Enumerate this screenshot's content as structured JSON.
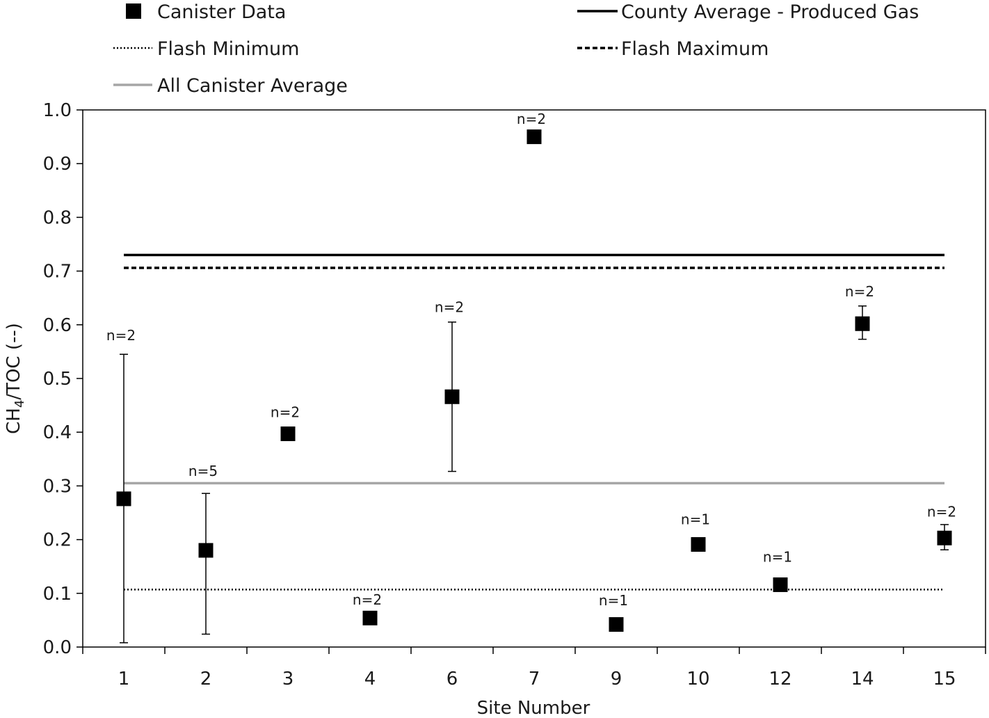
{
  "chart_data": {
    "type": "scatter",
    "title": "",
    "xlabel": "Site Number",
    "ylabel": {
      "main": "CH",
      "subscript": "4",
      "rest": "/TOC (--)"
    },
    "ylim": [
      0,
      1.0
    ],
    "yticks": [
      "0.0",
      "0.1",
      "0.2",
      "0.3",
      "0.4",
      "0.5",
      "0.6",
      "0.7",
      "0.8",
      "0.9",
      "1.0"
    ],
    "ytick_values": [
      0,
      0.1,
      0.2,
      0.3,
      0.4,
      0.5,
      0.6,
      0.7,
      0.8,
      0.9,
      1.0
    ],
    "categories": [
      "1",
      "2",
      "3",
      "4",
      "6",
      "7",
      "9",
      "10",
      "12",
      "14",
      "15"
    ],
    "grid": false,
    "legend_position": "top",
    "series": [
      {
        "name": "Canister Data",
        "marker": "square",
        "color": "#000000",
        "values": [
          0.276,
          0.18,
          0.397,
          0.054,
          0.466,
          0.95,
          0.042,
          0.191,
          0.116,
          0.602,
          0.203
        ],
        "err_low": [
          0.008,
          0.024,
          null,
          null,
          0.327,
          null,
          null,
          null,
          null,
          0.573,
          0.181
        ],
        "err_high": [
          0.545,
          0.286,
          null,
          null,
          0.605,
          null,
          null,
          null,
          null,
          0.635,
          0.228
        ],
        "n_labels": [
          "n=2",
          "n=5",
          "n=2",
          "n=2",
          "n=2",
          "n=2",
          "n=1",
          "n=1",
          "n=1",
          "n=2",
          "n=2"
        ],
        "n_label_values": [
          0.58,
          0.328,
          0.437,
          0.088,
          0.633,
          0.983,
          0.087,
          0.238,
          0.168,
          0.662,
          0.252
        ]
      }
    ],
    "reference_lines": [
      {
        "name": "County Average - Produced Gas",
        "value": 0.73,
        "style": "solid",
        "color": "#000000"
      },
      {
        "name": "Flash Maximum",
        "value": 0.706,
        "style": "dashed",
        "color": "#000000"
      },
      {
        "name": "Flash Minimum",
        "value": 0.107,
        "style": "dotted",
        "color": "#000000"
      },
      {
        "name": "All Canister Average",
        "value": 0.305,
        "style": "solid",
        "color": "#a6a6a6"
      }
    ],
    "legend": [
      {
        "label": "Canister Data",
        "symbol": "square"
      },
      {
        "label": "County Average - Produced Gas",
        "symbol": "solid"
      },
      {
        "label": "Flash Minimum",
        "symbol": "dotted"
      },
      {
        "label": "Flash Maximum",
        "symbol": "dashed"
      },
      {
        "label": "All Canister Average",
        "symbol": "gray"
      }
    ]
  }
}
